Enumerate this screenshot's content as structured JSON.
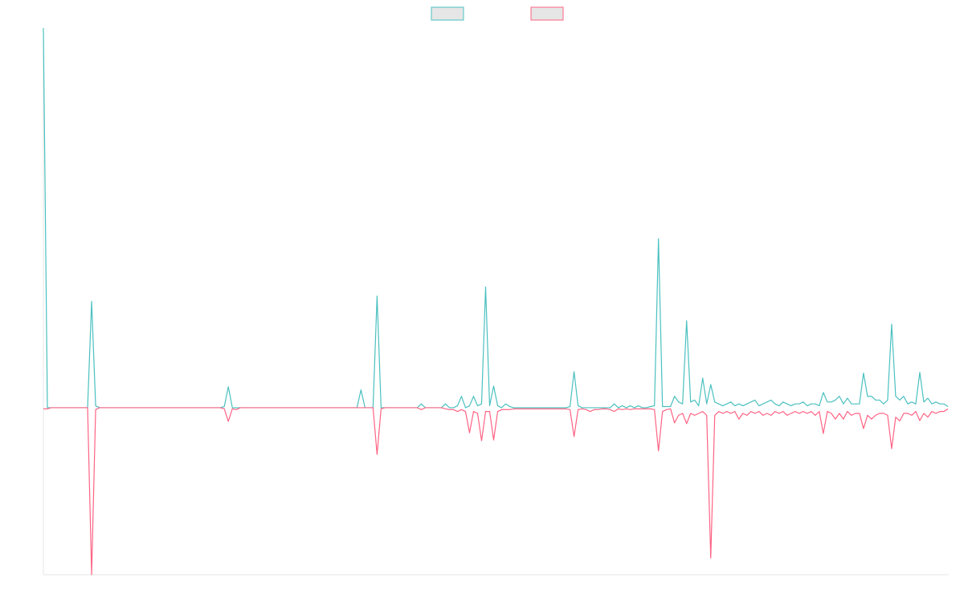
{
  "chart_data": {
    "type": "line",
    "legend": "top",
    "ylim": [
      -44,
      100
    ],
    "series": [
      {
        "color": "#4bc0c0",
        "values": [
          100,
          0,
          0,
          0,
          0,
          0,
          0,
          0,
          0,
          0,
          0,
          0,
          28,
          0.5,
          0,
          0,
          0,
          0,
          0,
          0,
          0,
          0,
          0,
          0,
          0,
          0,
          0,
          0,
          0,
          0,
          0,
          0,
          0,
          0,
          0,
          0,
          0,
          0,
          0,
          0,
          0,
          0,
          0,
          0,
          0,
          0.3,
          5.5,
          0,
          0,
          0,
          0,
          0,
          0,
          0,
          0,
          0,
          0,
          0,
          0,
          0,
          0,
          0,
          0,
          0,
          0,
          0,
          0,
          0,
          0,
          0,
          0,
          0,
          0,
          0,
          0,
          0,
          0,
          0,
          0,
          4.7,
          0,
          0,
          0,
          29.4,
          0,
          0,
          0,
          0,
          0,
          0,
          0,
          0,
          0,
          0,
          1,
          0,
          0,
          0,
          0,
          0,
          1,
          0,
          0,
          0.5,
          3,
          0,
          0.5,
          3,
          0.5,
          1,
          31.8,
          0.5,
          5.7,
          0.5,
          0,
          1,
          0.3,
          0,
          0,
          0,
          0,
          0,
          0,
          0,
          0,
          0,
          0,
          0,
          0,
          0,
          0,
          0.3,
          9.5,
          0.5,
          0,
          0,
          0,
          0,
          0,
          0,
          0,
          0,
          1,
          0,
          0.5,
          0,
          0.5,
          0,
          0.5,
          0,
          0,
          0.3,
          0.5,
          44.5,
          0.3,
          0.3,
          0.3,
          3,
          1.5,
          1,
          22.9,
          1.5,
          2,
          0.5,
          7.8,
          1,
          6.1,
          1.5,
          1,
          0.5,
          1,
          1.5,
          0.5,
          1,
          0.5,
          1,
          1.5,
          2,
          0.5,
          1,
          1.5,
          2,
          1,
          0.5,
          1.5,
          1,
          0.5,
          1,
          1,
          1.5,
          0.5,
          1,
          1,
          0.5,
          4,
          1.5,
          1.5,
          2,
          3,
          1,
          2.5,
          1,
          1,
          1,
          9.1,
          3,
          3,
          2,
          2,
          1,
          2,
          22,
          3,
          2,
          3,
          1,
          1.5,
          1,
          9.3,
          1.5,
          2.5,
          1,
          1.5,
          1,
          1,
          0.3
        ]
      },
      {
        "color": "#ff6384",
        "values": [
          -0.3,
          -0.3,
          0,
          0,
          0,
          0,
          0,
          0,
          0,
          0,
          0,
          0,
          -44,
          -0.5,
          0,
          0,
          0,
          0,
          0,
          0,
          0,
          0,
          0,
          0,
          0,
          0,
          0,
          0,
          0,
          0,
          0,
          0,
          0,
          0,
          0,
          0,
          0,
          0,
          0,
          0,
          0,
          0,
          0,
          0,
          0,
          -0.3,
          -3.6,
          -0.3,
          -0.5,
          0,
          0,
          0,
          0,
          0,
          0,
          0,
          0,
          0,
          0,
          0,
          0,
          0,
          0,
          0,
          0,
          0,
          0,
          0,
          0,
          0,
          0,
          0,
          0,
          0,
          0,
          0,
          0,
          0,
          0,
          0,
          0,
          0,
          0,
          -12.3,
          -0.3,
          0,
          0,
          0,
          0,
          0,
          0,
          0,
          0,
          0,
          -0.5,
          0,
          0,
          0,
          0,
          0,
          -0.3,
          -0.5,
          -0.5,
          -1,
          -0.5,
          -1,
          -6.6,
          -1,
          -1.5,
          -8.7,
          -1,
          -1,
          -8.5,
          -1,
          -0.5,
          -0.5,
          -0.5,
          -0.3,
          -0.3,
          -0.3,
          -0.3,
          -0.3,
          -0.3,
          -0.3,
          -0.3,
          -0.3,
          -0.3,
          -0.3,
          -0.3,
          -0.3,
          -0.3,
          -0.5,
          -7.6,
          -0.5,
          -0.3,
          -0.5,
          -1,
          -0.5,
          -0.5,
          -0.3,
          -0.3,
          -0.5,
          -1,
          -0.3,
          -0.5,
          -0.3,
          -0.5,
          -0.3,
          -0.3,
          -0.3,
          -0.3,
          -0.3,
          -0.5,
          -11.4,
          -1,
          -0.5,
          -0.3,
          -4,
          -2,
          -1.5,
          -4.2,
          -1.5,
          -2,
          -1.5,
          -1,
          -2,
          -39.6,
          -2,
          -1,
          -1.5,
          -1,
          -1.5,
          -1,
          -3,
          -1.5,
          -2,
          -1,
          -1.5,
          -1,
          -2,
          -1.5,
          -2,
          -1,
          -1.5,
          -1,
          -2,
          -1.5,
          -1,
          -1.5,
          -1,
          -1.5,
          -1,
          -2,
          -1,
          -6.8,
          -1,
          -1.5,
          -3,
          -1.5,
          -3,
          -1,
          -2,
          -1.5,
          -1.5,
          -5.5,
          -2,
          -3,
          -2,
          -1.5,
          -1.5,
          -2,
          -10.8,
          -2.5,
          -3.5,
          -1.5,
          -1.5,
          -2,
          -1,
          -3.4,
          -1.5,
          -2.5,
          -1,
          -1.5,
          -1,
          -1,
          -0.3
        ]
      }
    ]
  }
}
